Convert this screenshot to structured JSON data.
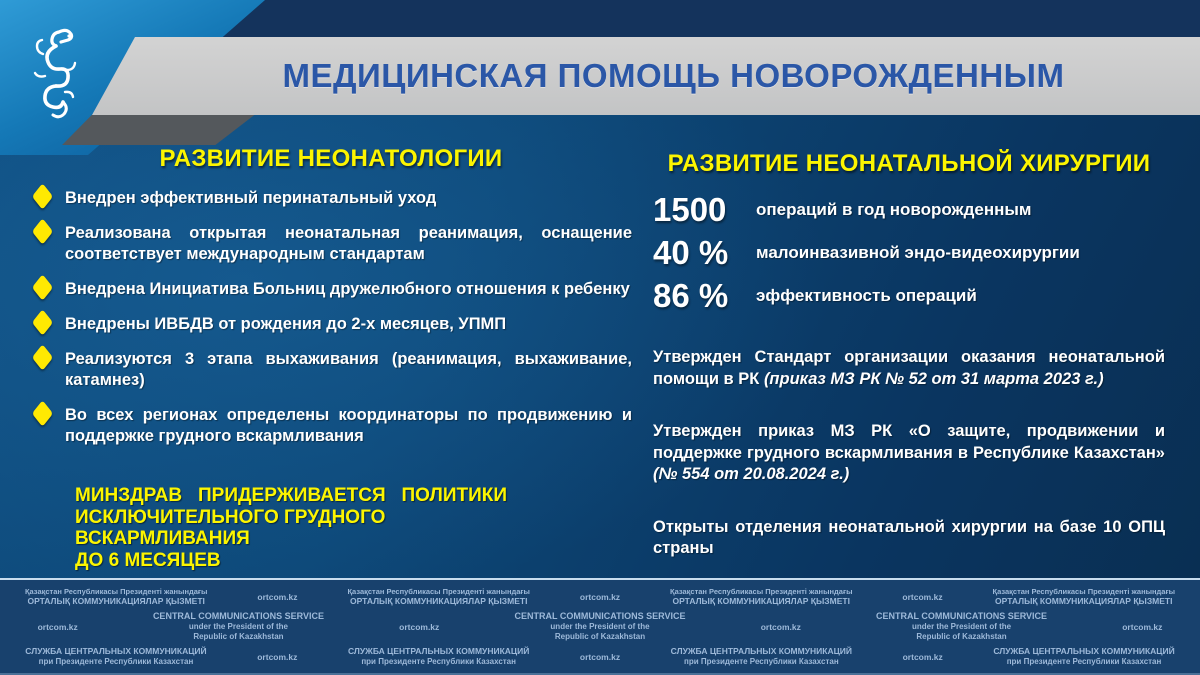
{
  "slide": {
    "title": "МЕДИЦИНСКАЯ ПОМОЩЬ НОВОРОЖДЕННЫМ"
  },
  "left_column": {
    "heading": "РАЗВИТИЕ НЕОНАТОЛОГИИ",
    "bullets": [
      "Внедрен эффективный перинатальный уход",
      "Реализована открытая неонатальная реанимация, оснащение соответствует международным стандартам",
      "Внедрена Инициатива Больниц дружелюбного отношения к ребенку",
      "Внедрены ИВБДВ от рождения до 2-х месяцев, УПМП",
      "Реализуются 3 этапа выхаживания (реанимация, выхаживание, катамнез)",
      "Во всех регионах определены координаторы по продвижению и поддержке грудного вскармливания"
    ],
    "statement_lines": [
      "МИНЗДРАВ ПРИДЕРЖИВАЕТСЯ ПОЛИТИКИ",
      "ИСКЛЮЧИТЕЛЬНОГО ГРУДНОГО ВСКАРМЛИВАНИЯ",
      "ДО 6 МЕСЯЦЕВ"
    ]
  },
  "right_column": {
    "heading": "РАЗВИТИЕ НЕОНАТАЛЬНОЙ ХИРУРГИИ",
    "stats": [
      {
        "value": "1500",
        "label": "операций в год новорожденным"
      },
      {
        "value": "40 %",
        "label": "малоинвазивной эндо-видеохирургии"
      },
      {
        "value": "86 %",
        "label": "эффективность операций"
      }
    ],
    "paragraphs": [
      {
        "text": "Утвержден Стандарт организации оказания неонатальной помощи в РК ",
        "ref": "(приказ МЗ РК № 52 от 31 марта 2023 г.)"
      },
      {
        "text": "Утвержден приказ МЗ РК «О защите, продвижении и поддержке грудного вскармливания в Республике Казахстан» ",
        "ref": "(№ 554 от 20.08.2024 г.)"
      },
      {
        "text": "Открыты отделения неонатальной хирургии на базе 10 ОПЦ страны",
        "ref": ""
      }
    ]
  },
  "footer": {
    "site": "ortcom.kz",
    "kz": {
      "lines": [
        "Қазақстан Республикасы Президенті жанындағы",
        "ОРТАЛЫҚ КОММУНИКАЦИЯЛАР ҚЫЗМЕТІ"
      ]
    },
    "en": {
      "lines": [
        "CENTRAL COMMUNICATIONS SERVICE",
        "under the President of the",
        "Republic of Kazakhstan"
      ]
    },
    "ru": {
      "lines": [
        "СЛУЖБА ЦЕНТРАЛЬНЫХ КОММУНИКАЦИЙ",
        "при Президенте Республики Казахстан"
      ]
    },
    "rows": [
      [
        "kz",
        "site",
        "kz",
        "site",
        "kz",
        "site",
        "kz"
      ],
      [
        "site",
        "en",
        "site",
        "en",
        "site",
        "en",
        "site"
      ],
      [
        "ru",
        "site",
        "ru",
        "site",
        "ru",
        "site",
        "ru"
      ]
    ]
  },
  "icons": {
    "bullet": "yellow-diamond",
    "emblem": "snow-leopard-ornament"
  },
  "colors": {
    "accent_yellow": "#fcf500",
    "title_blue": "#2b57a7",
    "banner_gray": "#c9c9c9",
    "background_blue": "#0d4878",
    "footer_blue": "#18416d"
  }
}
